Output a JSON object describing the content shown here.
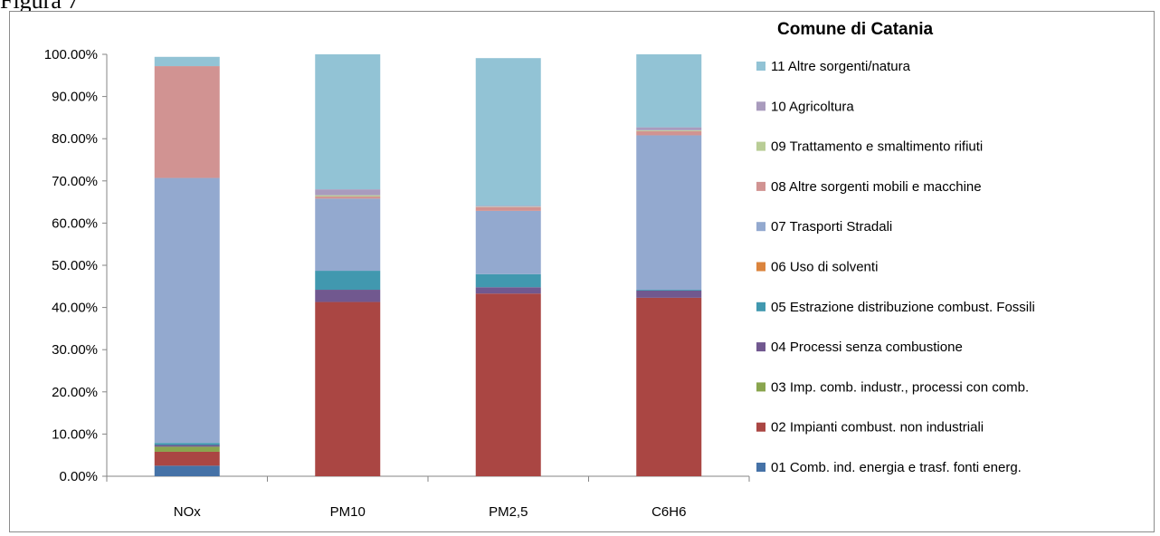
{
  "caption": "Figura 7",
  "chart_data": {
    "type": "bar",
    "stacked": true,
    "title": "",
    "legend_title": "Comune di Catania",
    "legend_position": "right",
    "categories": [
      "NOx",
      "PM10",
      "PM2,5",
      "C6H6"
    ],
    "ylim": [
      0,
      100
    ],
    "y_ticks": [
      "0.00%",
      "10.00%",
      "20.00%",
      "30.00%",
      "40.00%",
      "50.00%",
      "60.00%",
      "70.00%",
      "80.00%",
      "90.00%",
      "100.00%"
    ],
    "grid": false,
    "series": [
      {
        "name": "01 Comb. ind. energia e trasf. fonti energ.",
        "color": "#4572a7",
        "values": [
          2.5,
          0,
          0,
          0
        ]
      },
      {
        "name": "02 Impianti combust. non industriali",
        "color": "#aa4643",
        "values": [
          3.3,
          41.3,
          43.3,
          42.3
        ]
      },
      {
        "name": "03 Imp. comb. industr., processi con comb.",
        "color": "#89a54e",
        "values": [
          1.2,
          0,
          0,
          0
        ]
      },
      {
        "name": "04 Processi senza combustione",
        "color": "#71588f",
        "values": [
          0.4,
          2.9,
          1.5,
          1.7
        ]
      },
      {
        "name": "05 Estrazione distribuzione combust. Fossili",
        "color": "#4198af",
        "values": [
          0.5,
          4.5,
          3.1,
          0.2
        ]
      },
      {
        "name": "06 Uso di solventi",
        "color": "#db843d",
        "values": [
          0,
          0,
          0,
          0
        ]
      },
      {
        "name": "07 Trasporti Stradali",
        "color": "#93a9cf",
        "values": [
          62.8,
          17.1,
          15.0,
          36.6
        ]
      },
      {
        "name": "08 Altre sorgenti mobili e macchine",
        "color": "#d19392",
        "values": [
          26.5,
          0.5,
          0.9,
          1.0
        ]
      },
      {
        "name": "09 Trattamento e smaltimento rifiuti",
        "color": "#b9cd96",
        "values": [
          0,
          0.3,
          0.1,
          0.2
        ]
      },
      {
        "name": "10 Agricoltura",
        "color": "#a99bbd",
        "values": [
          0,
          1.4,
          0.2,
          0.7
        ]
      },
      {
        "name": "11 Altre sorgenti/natura",
        "color": "#92c3d5",
        "values": [
          2.2,
          32.0,
          35.0,
          17.3
        ]
      }
    ]
  }
}
